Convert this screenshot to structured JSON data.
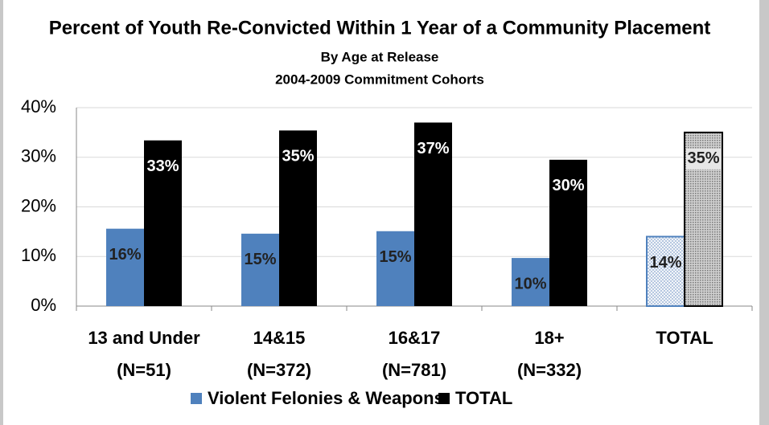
{
  "chart_data": {
    "type": "bar",
    "title": "Percent of Youth Re-Convicted Within 1 Year of a Community Placement",
    "subtitle": [
      "By Age at Release",
      "2004-2009 Commitment Cohorts"
    ],
    "categories": [
      [
        "13 and Under",
        "(N=51)"
      ],
      [
        "14&15",
        "(N=372)"
      ],
      [
        "16&17",
        "(N=781)"
      ],
      [
        "18+",
        "(N=332)"
      ],
      [
        "TOTAL"
      ]
    ],
    "series": [
      {
        "name": "Violent Felonies & Weapons",
        "color": "#4f81bd",
        "values": [
          15.6,
          14.6,
          15.1,
          9.7,
          14.0
        ],
        "value_labels": [
          "16%",
          "15%",
          "15%",
          "10%",
          "14%"
        ]
      },
      {
        "name": "TOTAL",
        "color": "#000000",
        "values": [
          33.4,
          35.4,
          37.0,
          29.5,
          35.0
        ],
        "value_labels": [
          "33%",
          "35%",
          "37%",
          "30%",
          "35%"
        ]
      }
    ],
    "ylim": [
      0,
      40
    ],
    "yticks": [
      {
        "value": 0,
        "label": "0%"
      },
      {
        "value": 10,
        "label": "10%"
      },
      {
        "value": 20,
        "label": "20%"
      },
      {
        "value": 30,
        "label": "30%"
      },
      {
        "value": 40,
        "label": "40%"
      }
    ],
    "grid": true,
    "legend": "bottom"
  }
}
